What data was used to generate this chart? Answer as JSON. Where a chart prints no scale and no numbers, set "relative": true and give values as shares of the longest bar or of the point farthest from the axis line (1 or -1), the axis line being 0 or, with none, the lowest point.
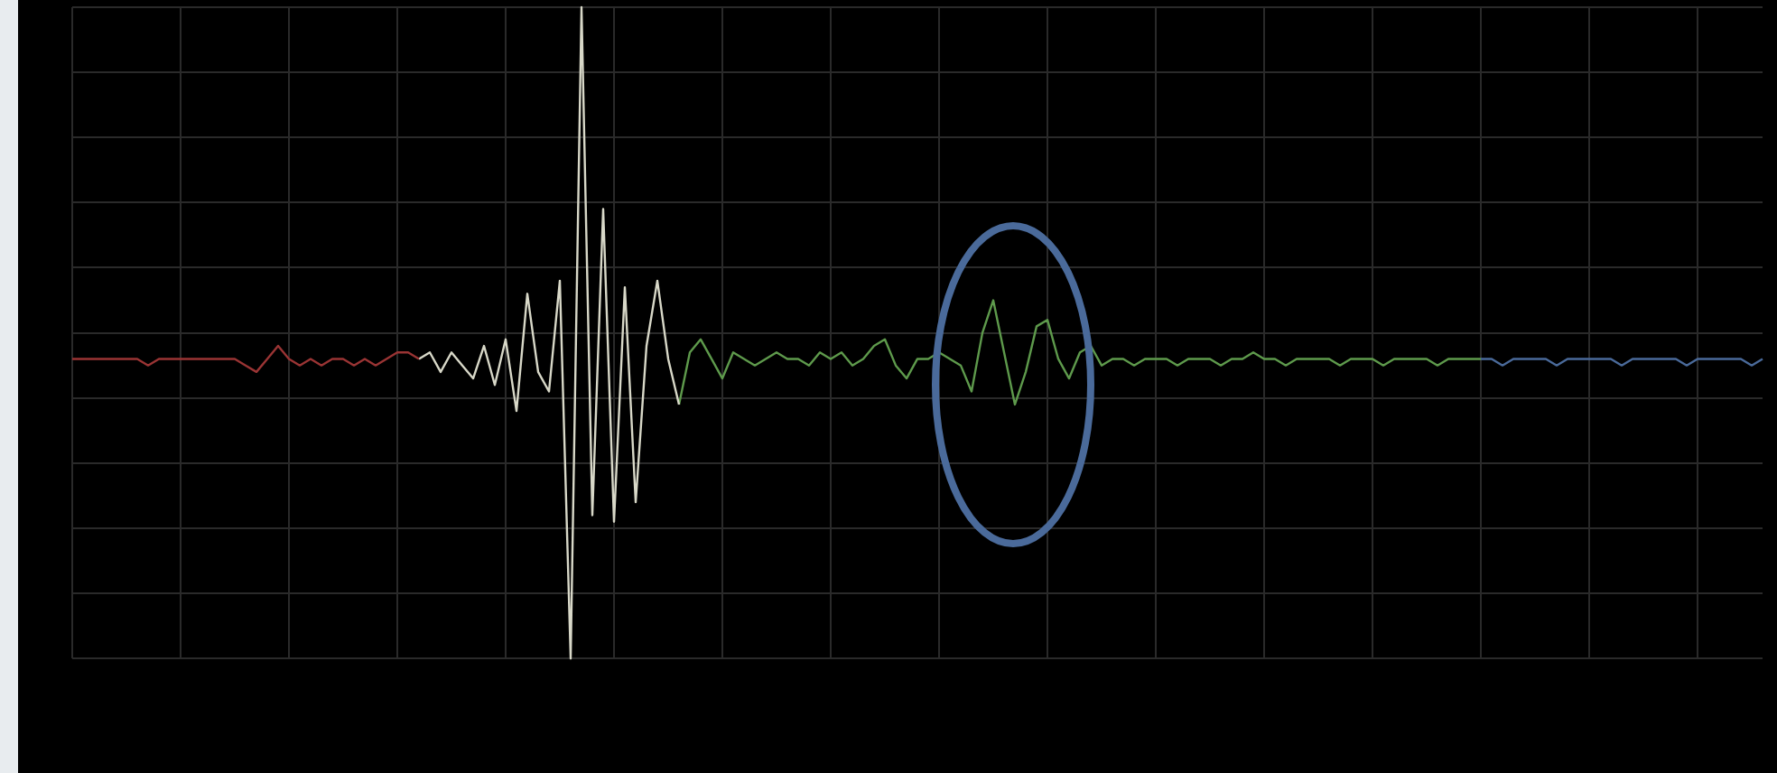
{
  "chart_data": {
    "type": "line",
    "relative": true,
    "grid": true,
    "marker": "none",
    "line_style": "solid",
    "legend": false,
    "categories": [
      null,
      null,
      null,
      null,
      null,
      null,
      null,
      null,
      null,
      null,
      null,
      null,
      null,
      null,
      null,
      null,
      null,
      null,
      null,
      null,
      null,
      null,
      null,
      null,
      null,
      null,
      null,
      null,
      null,
      null,
      null,
      null,
      null,
      null,
      null,
      null,
      null,
      null,
      null,
      null,
      null,
      null,
      null,
      null,
      null,
      null,
      null,
      null,
      null,
      null,
      null,
      null,
      null,
      null,
      null,
      null,
      null,
      null,
      null,
      null,
      null,
      null,
      null,
      null,
      null,
      null,
      null,
      null,
      null,
      null,
      null,
      null,
      null,
      null,
      null,
      null,
      null,
      null,
      null,
      null,
      null,
      null,
      null,
      null,
      null,
      null,
      null,
      null,
      null,
      null,
      null,
      null,
      null,
      null,
      null,
      null,
      null,
      null,
      null,
      null,
      null,
      null,
      null,
      null,
      null,
      null,
      null,
      null,
      null,
      null,
      null,
      null,
      null,
      null,
      null,
      null,
      null,
      null,
      null,
      null,
      null,
      null,
      null,
      null,
      null,
      null,
      null,
      null,
      null,
      null,
      null,
      null,
      null,
      null,
      null,
      null,
      null,
      null,
      null,
      null,
      null,
      null,
      null,
      null,
      null,
      null,
      null,
      null,
      null,
      null,
      null,
      null,
      null,
      null,
      null,
      null,
      null
    ],
    "series": [
      {
        "color": "#9a3434",
        "values": [
          0.46,
          0.46,
          0.46,
          0.46,
          0.46,
          0.46,
          0.46,
          0.45,
          0.46,
          0.46,
          0.46,
          0.46,
          0.46,
          0.46,
          0.46,
          0.46,
          0.45,
          0.44,
          0.46,
          0.48,
          0.46,
          0.45,
          0.46,
          0.45,
          0.46,
          0.46,
          0.45,
          0.46,
          0.45,
          0.46,
          0.47,
          0.47,
          0.46,
          null,
          null,
          null,
          null,
          null,
          null,
          null,
          null,
          null,
          null,
          null,
          null,
          null,
          null,
          null,
          null,
          null,
          null,
          null,
          null,
          null,
          null,
          null,
          null,
          null,
          null,
          null,
          null,
          null,
          null,
          null,
          null,
          null,
          null,
          null,
          null,
          null,
          null,
          null,
          null,
          null,
          null,
          null,
          null,
          null,
          null,
          null,
          null,
          null,
          null,
          null,
          null,
          null,
          null,
          null,
          null,
          null,
          null,
          null,
          null,
          null,
          null,
          null,
          null,
          null,
          null,
          null,
          null,
          null,
          null,
          null,
          null,
          null,
          null,
          null,
          null,
          null,
          null,
          null,
          null,
          null,
          null,
          null,
          null,
          null,
          null,
          null,
          null,
          null,
          null,
          null,
          null,
          null,
          null,
          null,
          null,
          null,
          null,
          null,
          null,
          null,
          null,
          null,
          null,
          null,
          null,
          null,
          null,
          null,
          null,
          null,
          null,
          null,
          null,
          null,
          null,
          null,
          null,
          null,
          null,
          null,
          null,
          null,
          null
        ]
      },
      {
        "color": "#d8d8c8",
        "values": [
          null,
          null,
          null,
          null,
          null,
          null,
          null,
          null,
          null,
          null,
          null,
          null,
          null,
          null,
          null,
          null,
          null,
          null,
          null,
          null,
          null,
          null,
          null,
          null,
          null,
          null,
          null,
          null,
          null,
          null,
          null,
          null,
          0.46,
          0.47,
          0.44,
          0.47,
          0.45,
          0.43,
          0.48,
          0.42,
          0.49,
          0.38,
          0.56,
          0.44,
          0.41,
          0.58,
          0.0,
          1.0,
          0.22,
          0.69,
          0.21,
          0.57,
          0.24,
          0.48,
          0.58,
          0.46,
          0.39,
          null,
          null,
          null,
          null,
          null,
          null,
          null,
          null,
          null,
          null,
          null,
          null,
          null,
          null,
          null,
          null,
          null,
          null,
          null,
          null,
          null,
          null,
          null,
          null,
          null,
          null,
          null,
          null,
          null,
          null,
          null,
          null,
          null,
          null,
          null,
          null,
          null,
          null,
          null,
          null,
          null,
          null,
          null,
          null,
          null,
          null,
          null,
          null,
          null,
          null,
          null,
          null,
          null,
          null,
          null,
          null,
          null,
          null,
          null,
          null,
          null,
          null,
          null,
          null,
          null,
          null,
          null,
          null,
          null,
          null,
          null,
          null,
          null,
          null,
          null,
          null,
          null,
          null,
          null,
          null,
          null,
          null,
          null,
          null,
          null,
          null,
          null,
          null,
          null,
          null,
          null,
          null,
          null,
          null,
          null,
          null,
          null,
          null,
          null,
          null
        ]
      },
      {
        "color": "#5e9a4c",
        "values": [
          null,
          null,
          null,
          null,
          null,
          null,
          null,
          null,
          null,
          null,
          null,
          null,
          null,
          null,
          null,
          null,
          null,
          null,
          null,
          null,
          null,
          null,
          null,
          null,
          null,
          null,
          null,
          null,
          null,
          null,
          null,
          null,
          null,
          null,
          null,
          null,
          null,
          null,
          null,
          null,
          null,
          null,
          null,
          null,
          null,
          null,
          null,
          null,
          null,
          null,
          null,
          null,
          null,
          null,
          null,
          null,
          0.39,
          0.47,
          0.49,
          0.46,
          0.43,
          0.47,
          0.46,
          0.45,
          0.46,
          0.47,
          0.46,
          0.46,
          0.45,
          0.47,
          0.46,
          0.47,
          0.45,
          0.46,
          0.48,
          0.49,
          0.45,
          0.43,
          0.46,
          0.46,
          0.47,
          0.46,
          0.45,
          0.41,
          0.5,
          0.55,
          0.47,
          0.39,
          0.44,
          0.51,
          0.52,
          0.46,
          0.43,
          0.47,
          0.48,
          0.45,
          0.46,
          0.46,
          0.45,
          0.46,
          0.46,
          0.46,
          0.45,
          0.46,
          0.46,
          0.46,
          0.45,
          0.46,
          0.46,
          0.47,
          0.46,
          0.46,
          0.45,
          0.46,
          0.46,
          0.46,
          0.46,
          0.45,
          0.46,
          0.46,
          0.46,
          0.45,
          0.46,
          0.46,
          0.46,
          0.46,
          0.45,
          0.46,
          0.46,
          0.46,
          0.46,
          null,
          null,
          null,
          null,
          null,
          null,
          null,
          null,
          null,
          null,
          null,
          null,
          null,
          null,
          null,
          null,
          null,
          null,
          null,
          null,
          null,
          null,
          null,
          null,
          null,
          null
        ]
      },
      {
        "color": "#4a6a9a",
        "values": [
          null,
          null,
          null,
          null,
          null,
          null,
          null,
          null,
          null,
          null,
          null,
          null,
          null,
          null,
          null,
          null,
          null,
          null,
          null,
          null,
          null,
          null,
          null,
          null,
          null,
          null,
          null,
          null,
          null,
          null,
          null,
          null,
          null,
          null,
          null,
          null,
          null,
          null,
          null,
          null,
          null,
          null,
          null,
          null,
          null,
          null,
          null,
          null,
          null,
          null,
          null,
          null,
          null,
          null,
          null,
          null,
          null,
          null,
          null,
          null,
          null,
          null,
          null,
          null,
          null,
          null,
          null,
          null,
          null,
          null,
          null,
          null,
          null,
          null,
          null,
          null,
          null,
          null,
          null,
          null,
          null,
          null,
          null,
          null,
          null,
          null,
          null,
          null,
          null,
          null,
          null,
          null,
          null,
          null,
          null,
          null,
          null,
          null,
          null,
          null,
          null,
          null,
          null,
          null,
          null,
          null,
          null,
          null,
          null,
          null,
          null,
          null,
          null,
          null,
          null,
          null,
          null,
          null,
          null,
          null,
          null,
          null,
          null,
          null,
          null,
          null,
          null,
          null,
          null,
          null,
          0.46,
          0.46,
          0.45,
          0.46,
          0.46,
          0.46,
          0.46,
          0.45,
          0.46,
          0.46,
          0.46,
          0.46,
          0.46,
          0.45,
          0.46,
          0.46,
          0.46,
          0.46,
          0.46,
          0.45,
          0.46,
          0.46,
          0.46,
          0.46,
          0.46,
          0.45,
          0.46
        ]
      }
    ]
  }
}
